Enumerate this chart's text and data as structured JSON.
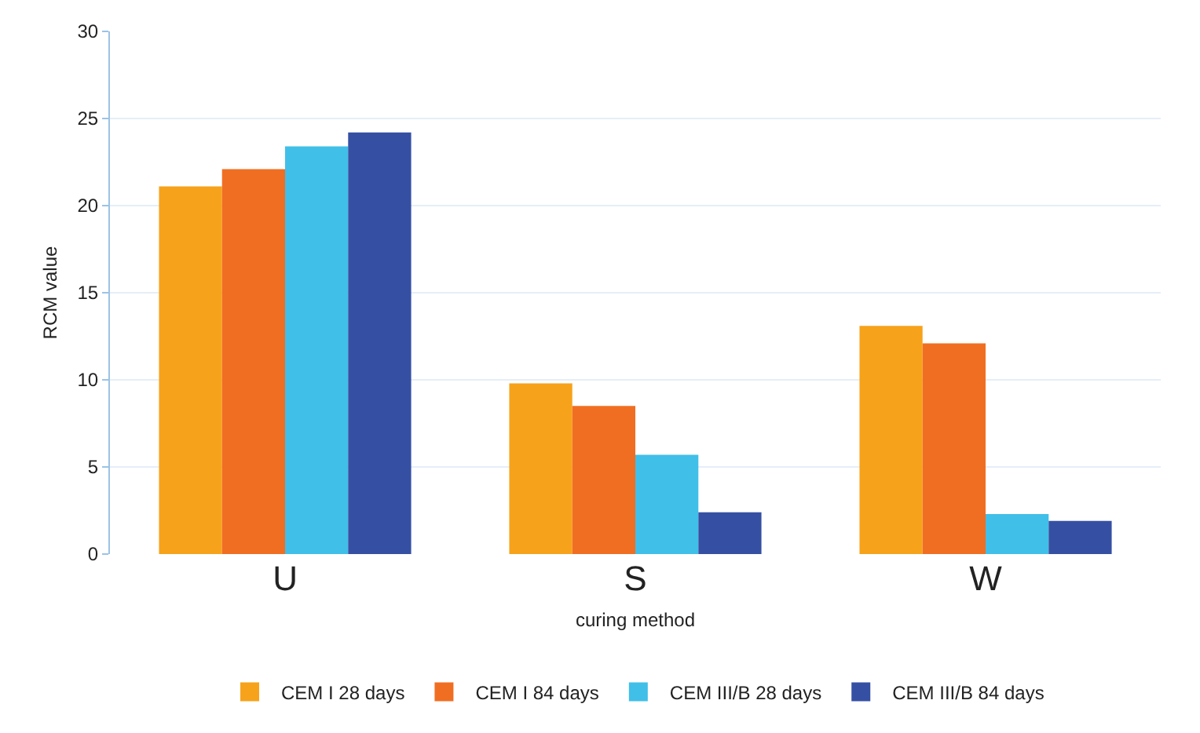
{
  "chart_data": {
    "type": "bar",
    "xlabel": "curing method",
    "ylabel": "RCM value",
    "categories": [
      "U",
      "S",
      "W"
    ],
    "series": [
      {
        "name": "CEM I 28 days",
        "color": "#f7a21b",
        "values": [
          21.1,
          9.8,
          13.1
        ]
      },
      {
        "name": "CEM I 84 days",
        "color": "#f06e22",
        "values": [
          22.1,
          8.5,
          12.1
        ]
      },
      {
        "name": "CEM III/B 28 days",
        "color": "#40bfe8",
        "values": [
          23.4,
          5.7,
          2.3
        ]
      },
      {
        "name": "CEM III/B 84 days",
        "color": "#3550a3",
        "values": [
          24.2,
          2.4,
          1.9
        ]
      }
    ],
    "ylim": [
      0,
      30
    ],
    "yticks": [
      0,
      5,
      10,
      15,
      20,
      25,
      30
    ],
    "grid": "y",
    "legend": "bottom"
  }
}
